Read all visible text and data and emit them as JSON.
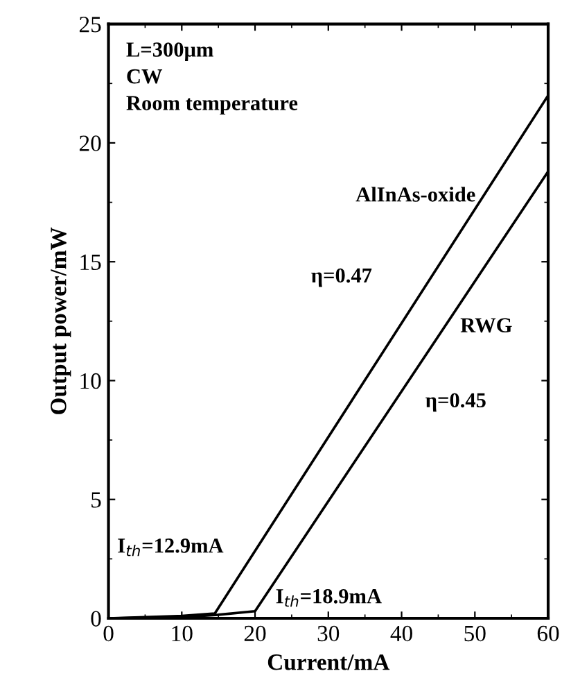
{
  "chart_data": {
    "type": "line",
    "xlabel": "Current/mA",
    "ylabel": "Output power/mW",
    "series": [
      {
        "name": "AlInAs-oxide",
        "color": "#000000",
        "x": [
          0,
          5,
          10,
          14.5,
          60
        ],
        "values": [
          0,
          0.05,
          0.1,
          0.2,
          22.0
        ]
      },
      {
        "name": "RWG",
        "color": "#000000",
        "x": [
          0,
          10,
          15,
          20,
          60
        ],
        "values": [
          0,
          0.05,
          0.15,
          0.3,
          18.8
        ]
      }
    ],
    "annotations": [
      "L=300μm",
      "CW",
      "Room temperature",
      "η=0.47",
      "η=0.45",
      "I$_{th}$=12.9mA",
      "I$_{th}$=18.9mA"
    ],
    "xlim": [
      0,
      60
    ],
    "ylim": [
      0,
      25
    ],
    "xticks": [
      0,
      10,
      20,
      30,
      40,
      50,
      60
    ],
    "yticks": [
      0,
      5,
      10,
      15,
      20,
      25
    ],
    "grid": false,
    "legend": "right",
    "marker": "none",
    "line_style": "solid"
  }
}
